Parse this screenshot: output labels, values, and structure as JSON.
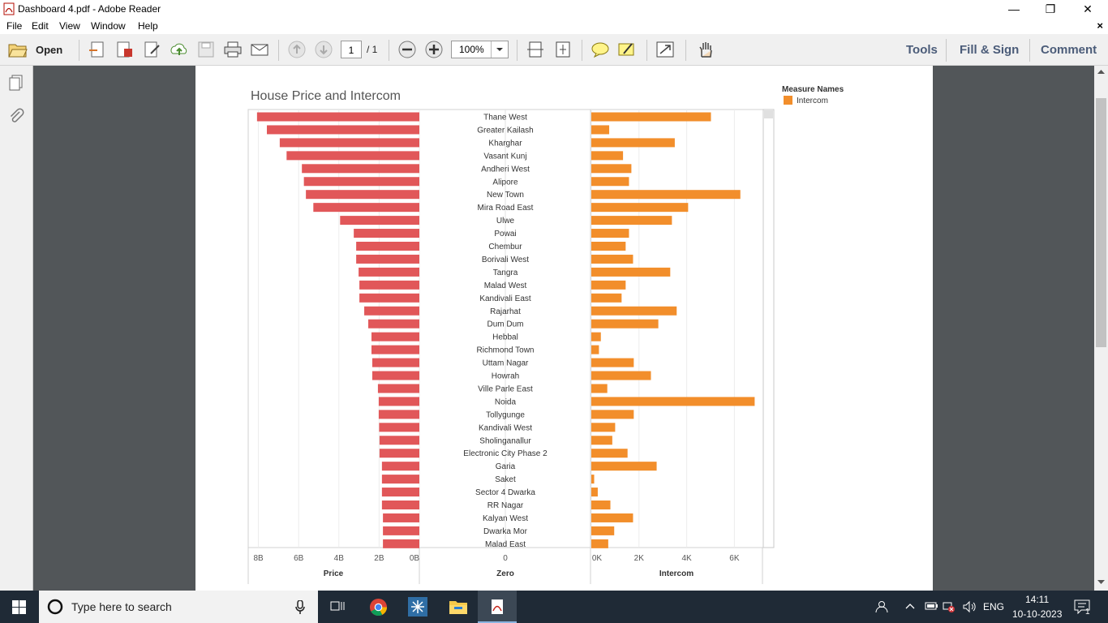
{
  "window": {
    "title": "Dashboard 4.pdf - Adobe Reader",
    "minimize": "—",
    "restore": "❐",
    "close": "✕"
  },
  "menu": [
    "File",
    "Edit",
    "View",
    "Window",
    "Help"
  ],
  "menu_close": "×",
  "toolbar": {
    "open_label": "Open",
    "page_current": "1",
    "page_total": "/ 1",
    "zoom": "100%",
    "tools": "Tools",
    "fill_sign": "Fill & Sign",
    "comment": "Comment"
  },
  "taskbar": {
    "search_placeholder": "Type here to search",
    "language": "ENG",
    "time": "14:11",
    "date": "10-10-2023",
    "notifications": "1"
  },
  "chart_data": {
    "type": "bar",
    "title": "House Price and Intercom",
    "legend_title": "Measure Names",
    "legend_item": "Intercom",
    "colors": {
      "price": "#e15759",
      "intercom": "#f28e2b"
    },
    "categories": [
      "Thane West",
      "Greater Kailash",
      "Kharghar",
      "Vasant Kunj",
      "Andheri West",
      "Alipore",
      "New Town",
      "Mira Road East",
      "Ulwe",
      "Powai",
      "Chembur",
      "Borivali West",
      "Tangra",
      "Malad West",
      "Kandivali East",
      "Rajarhat",
      "Dum Dum",
      "Hebbal",
      "Richmond Town",
      "Uttam Nagar",
      "Howrah",
      "Ville Parle East",
      "Noida",
      "Tollygunge",
      "Kandivali West",
      "Sholinganallur",
      "Electronic City Phase 2",
      "Garia",
      "Saket",
      "Sector 4 Dwarka",
      "RR Nagar",
      "Kalyan West",
      "Dwarka Mor",
      "Malad East"
    ],
    "series": [
      {
        "name": "Price",
        "values": [
          8.07,
          7.58,
          6.94,
          6.6,
          5.84,
          5.74,
          5.64,
          5.27,
          3.94,
          3.26,
          3.14,
          3.14,
          3.02,
          2.98,
          2.98,
          2.74,
          2.54,
          2.38,
          2.38,
          2.34,
          2.34,
          2.06,
          2.02,
          2.02,
          2.0,
          1.98,
          1.98,
          1.86,
          1.86,
          1.86,
          1.86,
          1.81,
          1.81,
          1.81
        ]
      },
      {
        "name": "Intercom",
        "values": [
          5017,
          750,
          3500,
          1330,
          1680,
          1580,
          6250,
          4060,
          3380,
          1580,
          1440,
          1750,
          3310,
          1440,
          1270,
          3580,
          2810,
          400,
          320,
          1780,
          2500,
          670,
          6850,
          1780,
          1000,
          880,
          1520,
          2740,
          120,
          270,
          800,
          1750,
          960,
          710
        ]
      }
    ],
    "panels": [
      {
        "label": "Price",
        "ticks": [
          "8B",
          "6B",
          "4B",
          "2B",
          "0B"
        ],
        "xlim": [
          0,
          8.4
        ],
        "unit": "B",
        "reversed": true
      },
      {
        "label": "Zero",
        "ticks": [
          "0"
        ]
      },
      {
        "label": "Intercom",
        "ticks": [
          "0K",
          "2K",
          "4K",
          "6K"
        ],
        "xlim": [
          0,
          7000
        ]
      }
    ],
    "grid": true,
    "legend_position": "top-right"
  }
}
